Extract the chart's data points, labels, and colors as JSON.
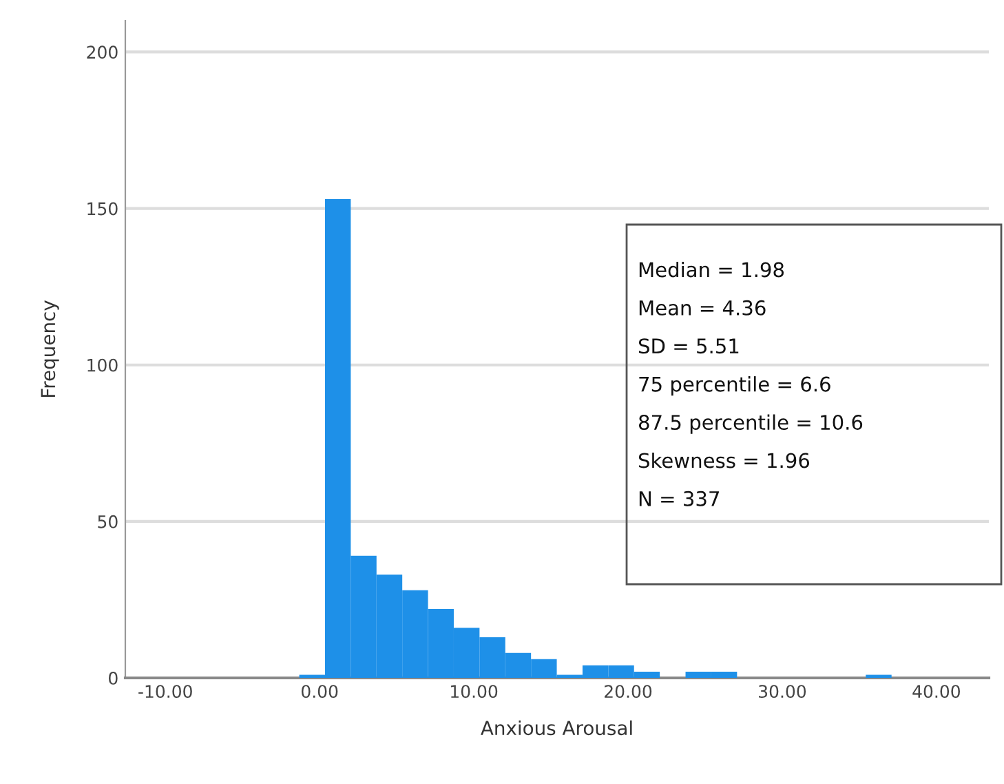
{
  "chart_data": {
    "type": "histogram",
    "xlabel": "Anxious Arousal",
    "ylabel": "Frequency",
    "bins": [
      -1.32,
      0.35,
      2.02,
      3.69,
      5.36,
      7.03,
      8.7,
      10.37,
      12.04,
      13.71,
      15.38,
      17.05,
      18.72,
      20.39,
      22.06,
      23.73,
      25.4,
      27.07,
      28.74,
      30.41,
      32.08,
      33.75,
      35.42,
      37.09
    ],
    "values": [
      1,
      153,
      39,
      33,
      28,
      22,
      16,
      13,
      8,
      6,
      1,
      4,
      4,
      2,
      0,
      2,
      2,
      0,
      0,
      0,
      0,
      0,
      1
    ],
    "color": "#1e90e8",
    "xlim": [
      -12.6,
      43.4
    ],
    "ylim": [
      0,
      210
    ],
    "xticks": [
      {
        "value": -10,
        "label": "-10.00"
      },
      {
        "value": 0,
        "label": "0.00"
      },
      {
        "value": 10,
        "label": "10.00"
      },
      {
        "value": 20,
        "label": "20.00"
      },
      {
        "value": 30,
        "label": "30.00"
      },
      {
        "value": 40,
        "label": "40.00"
      }
    ],
    "yticks": [
      0,
      50,
      100,
      150,
      200
    ],
    "grid": "y",
    "annotations": [
      "Median = 1.98",
      "Mean = 4.36",
      "SD = 5.51",
      "75 percentile = 6.6",
      "87.5 percentile = 10.6",
      "Skewness = 1.96",
      "N = 337"
    ]
  }
}
